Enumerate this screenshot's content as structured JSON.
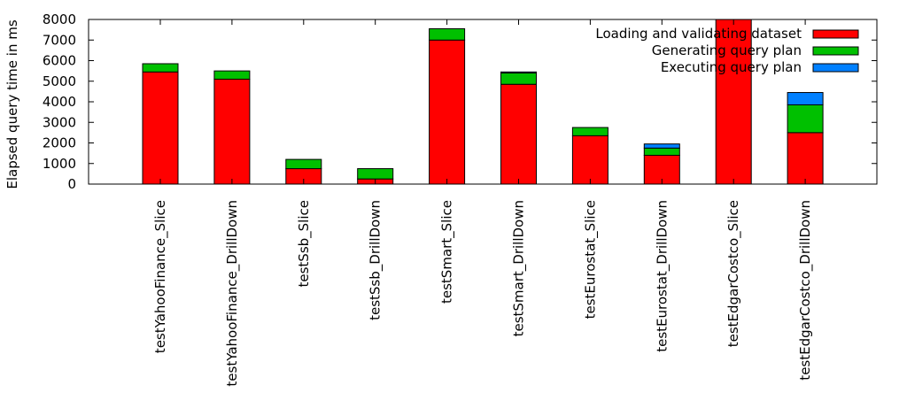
{
  "chart_data": {
    "type": "bar",
    "stacked": true,
    "title": "",
    "xlabel": "",
    "ylabel": "Elapsed query time in ms",
    "ylim": [
      0,
      8000
    ],
    "yticks": [
      0,
      1000,
      2000,
      3000,
      4000,
      5000,
      6000,
      7000,
      8000
    ],
    "grid": false,
    "legend_position": "top-right",
    "categories": [
      "testYahooFinance_Slice",
      "testYahooFinance_DrillDown",
      "testSsb_Slice",
      "testSsb_DrillDown",
      "testSmart_Slice",
      "testSmart_DrillDown",
      "testEurostat_Slice",
      "testEurostat_DrillDown",
      "testEdgarCostco_Slice",
      "testEdgarCostco_DrillDown"
    ],
    "series": [
      {
        "name": "Loading and validating dataset",
        "color": "#ff0000",
        "values": [
          5450,
          5100,
          750,
          250,
          7000,
          4850,
          2350,
          1400,
          8000,
          2500
        ]
      },
      {
        "name": "Generating query plan",
        "color": "#00c000",
        "values": [
          400,
          400,
          450,
          500,
          550,
          550,
          400,
          350,
          0,
          1350
        ]
      },
      {
        "name": "Executing query plan",
        "color": "#0080ff",
        "values": [
          0,
          0,
          0,
          0,
          0,
          50,
          0,
          200,
          0,
          600
        ]
      }
    ]
  }
}
